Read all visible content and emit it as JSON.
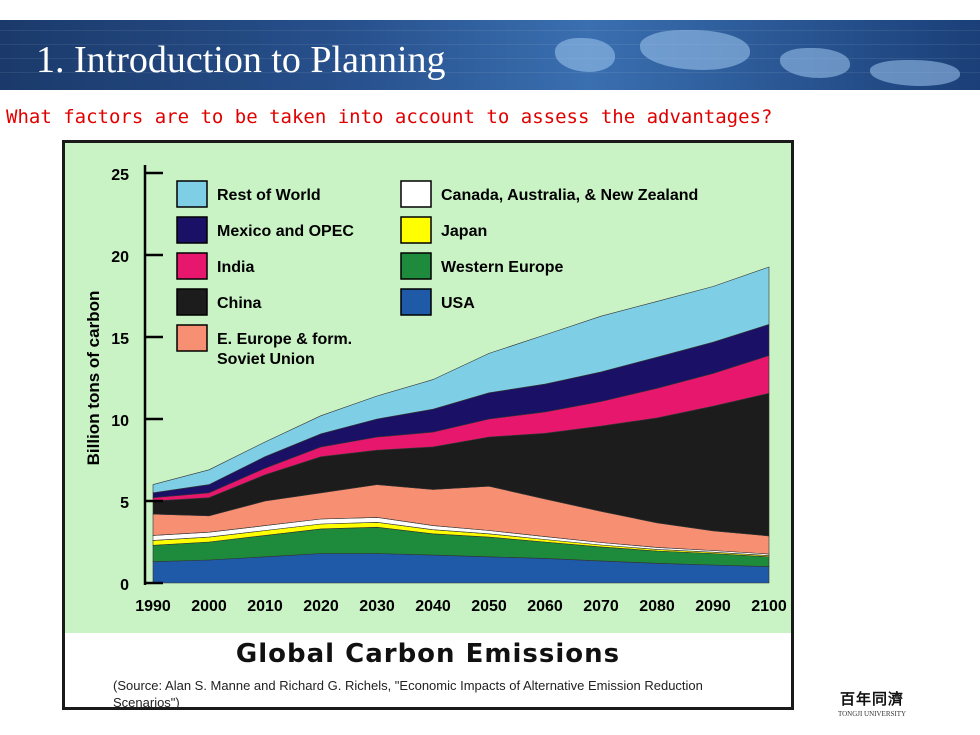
{
  "slide": {
    "title": "1. Introduction to Planning",
    "question": "What factors are to be taken into account to assess the advantages?"
  },
  "logo": {
    "chinese": "百年同濟",
    "english": "TONGJI UNIVERSITY"
  },
  "chart_data": {
    "type": "area",
    "stacked": true,
    "title": "Global Carbon Emissions",
    "source": "(Source: Alan S. Manne and Richard G. Richels, \"Economic Impacts of Alternative Emission Reduction Scenarios\")",
    "xlabel": "",
    "ylabel": "Billion tons of carbon",
    "xlim": [
      1990,
      2100
    ],
    "ylim": [
      0,
      25
    ],
    "x": [
      1990,
      2000,
      2010,
      2020,
      2030,
      2040,
      2050,
      2060,
      2070,
      2080,
      2090,
      2100
    ],
    "y_ticks": [
      0,
      5,
      10,
      15,
      20,
      25
    ],
    "legend_position": "top-left",
    "series": [
      {
        "name": "USA",
        "color": "#1f5aa8",
        "values": [
          1.3,
          1.4,
          1.6,
          1.8,
          1.8,
          1.7,
          1.6,
          1.5,
          1.35,
          1.2,
          1.1,
          1.0
        ]
      },
      {
        "name": "Western Europe",
        "color": "#1e8a3c",
        "values": [
          1.0,
          1.1,
          1.3,
          1.5,
          1.6,
          1.3,
          1.2,
          1.0,
          0.85,
          0.75,
          0.7,
          0.6
        ]
      },
      {
        "name": "Japan",
        "color": "#ffff00",
        "values": [
          0.3,
          0.3,
          0.3,
          0.3,
          0.3,
          0.25,
          0.2,
          0.15,
          0.12,
          0.1,
          0.08,
          0.07
        ]
      },
      {
        "name": "Canada, Australia, & New Zealand",
        "color": "#ffffff",
        "values": [
          0.3,
          0.3,
          0.3,
          0.3,
          0.3,
          0.25,
          0.2,
          0.18,
          0.15,
          0.12,
          0.1,
          0.1
        ]
      },
      {
        "name": "E. Europe & form. Soviet Union",
        "color": "#f79072",
        "values": [
          1.3,
          1.0,
          1.5,
          1.6,
          2.0,
          2.2,
          2.7,
          2.3,
          1.9,
          1.5,
          1.2,
          1.1
        ]
      },
      {
        "name": "China",
        "color": "#1c1c1c",
        "values": [
          0.8,
          1.1,
          1.6,
          2.2,
          2.1,
          2.6,
          3.0,
          4.0,
          5.2,
          6.4,
          7.6,
          8.7
        ]
      },
      {
        "name": "India",
        "color": "#e8176e",
        "values": [
          0.2,
          0.3,
          0.4,
          0.6,
          0.8,
          0.9,
          1.1,
          1.3,
          1.5,
          1.8,
          2.0,
          2.3
        ]
      },
      {
        "name": "Mexico and OPEC",
        "color": "#1a1066",
        "values": [
          0.3,
          0.5,
          0.7,
          0.8,
          1.1,
          1.4,
          1.6,
          1.7,
          1.8,
          1.9,
          1.9,
          1.9
        ]
      },
      {
        "name": "Rest of World",
        "color": "#7ecfe6",
        "values": [
          0.5,
          0.9,
          0.9,
          1.1,
          1.4,
          1.8,
          2.4,
          3.0,
          3.4,
          3.4,
          3.4,
          3.5
        ]
      }
    ],
    "legend_order": [
      "Rest of World",
      "Canada, Australia, & New Zealand",
      "Mexico and OPEC",
      "Japan",
      "India",
      "Western Europe",
      "China",
      "USA",
      "E. Europe & form. Soviet Union"
    ],
    "legend_labels": {
      "E. Europe & form. Soviet Union": [
        "E. Europe & form.",
        "Soviet Union"
      ]
    }
  }
}
